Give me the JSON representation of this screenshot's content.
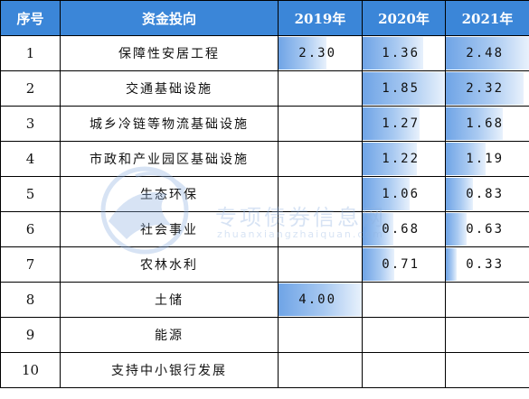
{
  "header": {
    "col_index": "序号",
    "col_name": "资金投向",
    "col_2019": "2019年",
    "col_2020": "2020年",
    "col_2021": "2021年"
  },
  "rows": [
    {
      "idx": "1",
      "name": "保障性安居工程",
      "v2019": "2.30",
      "v2020": "1.36",
      "v2021": "2.48",
      "f2019": 0.58,
      "f2020": 0.74,
      "f2021": 1.0
    },
    {
      "idx": "2",
      "name": "交通基础设施",
      "v2019": "",
      "v2020": "1.85",
      "v2021": "2.32",
      "f2019": 0,
      "f2020": 1.0,
      "f2021": 0.94
    },
    {
      "idx": "3",
      "name": "城乡冷链等物流基础设施",
      "v2019": "",
      "v2020": "1.27",
      "v2021": "1.68",
      "f2019": 0,
      "f2020": 0.69,
      "f2021": 0.68
    },
    {
      "idx": "4",
      "name": "市政和产业园区基础设施",
      "v2019": "",
      "v2020": "1.22",
      "v2021": "1.19",
      "f2019": 0,
      "f2020": 0.66,
      "f2021": 0.48
    },
    {
      "idx": "5",
      "name": "生态环保",
      "v2019": "",
      "v2020": "1.06",
      "v2021": "0.83",
      "f2019": 0,
      "f2020": 0.57,
      "f2021": 0.33
    },
    {
      "idx": "6",
      "name": "社会事业",
      "v2019": "",
      "v2020": "0.68",
      "v2021": "0.63",
      "f2019": 0,
      "f2020": 0.37,
      "f2021": 0.25
    },
    {
      "idx": "7",
      "name": "农林水利",
      "v2019": "",
      "v2020": "0.71",
      "v2021": "0.33",
      "f2019": 0,
      "f2020": 0.38,
      "f2021": 0.13
    },
    {
      "idx": "8",
      "name": "土储",
      "v2019": "4.00",
      "v2020": "",
      "v2021": "",
      "f2019": 1.0,
      "f2020": 0,
      "f2021": 0
    },
    {
      "idx": "9",
      "name": "能源",
      "v2019": "",
      "v2020": "",
      "v2021": "",
      "f2019": 0,
      "f2020": 0,
      "f2021": 0
    },
    {
      "idx": "10",
      "name": "支持中小银行发展",
      "v2019": "",
      "v2020": "",
      "v2021": "",
      "f2019": 0,
      "f2020": 0,
      "f2021": 0
    }
  ],
  "watermark": {
    "cn": "专项债券信息网",
    "en": "zhuanxiangzhaiquan.com"
  },
  "colors": {
    "header_bg": "#3b86d8",
    "bar": "#6fa4e6"
  }
}
